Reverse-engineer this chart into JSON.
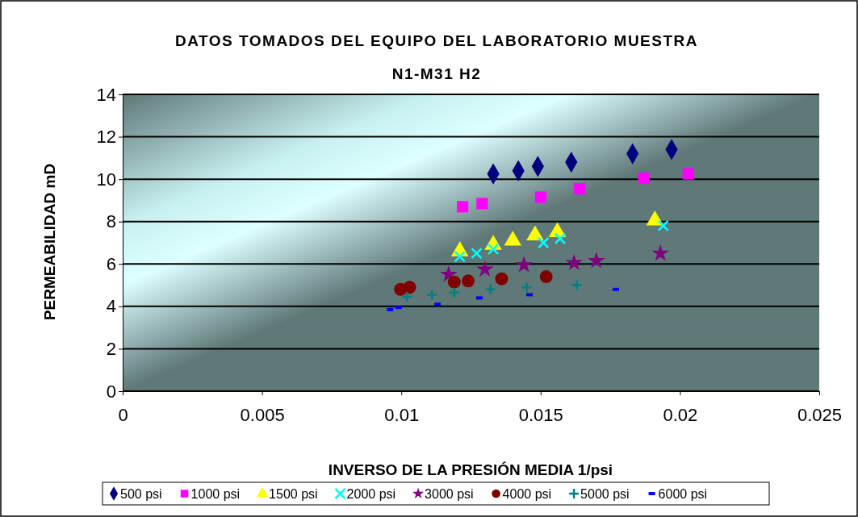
{
  "chart_data": {
    "type": "scatter",
    "title": "DATOS TOMADOS DEL EQUIPO DEL LABORATORIO MUESTRA",
    "subtitle": "N1-M31 H2",
    "xlabel": "INVERSO DE LA PRESIÓN MEDIA 1/psi",
    "ylabel": "PERMEABILIDAD mD",
    "xlim": [
      0,
      0.025
    ],
    "xticks": [
      0,
      0.005,
      0.01,
      0.015,
      0.02,
      0.025
    ],
    "ylim": [
      0,
      14
    ],
    "yticks": [
      0,
      2,
      4,
      6,
      8,
      10,
      12,
      14
    ],
    "grid": "y",
    "legend": "bottom",
    "series": [
      {
        "name": "500 psi",
        "color": "#000080",
        "marker": "diamond",
        "x": [
          0.0133,
          0.0142,
          0.0149,
          0.0161,
          0.0183,
          0.0197
        ],
        "values": [
          10.25,
          10.4,
          10.6,
          10.8,
          11.2,
          11.4
        ]
      },
      {
        "name": "1000 psi",
        "color": "#ff00ff",
        "marker": "square",
        "x": [
          0.0122,
          0.0129,
          0.015,
          0.0164,
          0.0187,
          0.0203
        ],
        "values": [
          8.7,
          8.85,
          9.15,
          9.55,
          10.05,
          10.25
        ]
      },
      {
        "name": "1500 psi",
        "color": "#ffff00",
        "marker": "triangle",
        "x": [
          0.0121,
          0.0133,
          0.014,
          0.0148,
          0.0156,
          0.0191
        ],
        "values": [
          6.6,
          6.9,
          7.1,
          7.35,
          7.5,
          8.05
        ]
      },
      {
        "name": "2000 psi",
        "color": "#00ffff",
        "marker": "cross",
        "x": [
          0.0121,
          0.0127,
          0.0133,
          0.0151,
          0.0157,
          0.0194
        ],
        "values": [
          6.35,
          6.5,
          6.7,
          7.0,
          7.2,
          7.8
        ]
      },
      {
        "name": "3000 psi",
        "color": "#800080",
        "marker": "star",
        "x": [
          0.0117,
          0.013,
          0.0144,
          0.0162,
          0.017,
          0.0193
        ],
        "values": [
          5.5,
          5.75,
          5.95,
          6.05,
          6.15,
          6.5
        ]
      },
      {
        "name": "4000 psi",
        "color": "#800000",
        "marker": "circle",
        "x": [
          0.00997,
          0.0103,
          0.0119,
          0.0124,
          0.0136,
          0.0152
        ],
        "values": [
          4.8,
          4.9,
          5.15,
          5.2,
          5.3,
          5.4
        ]
      },
      {
        "name": "5000 psi",
        "color": "#008080",
        "marker": "plus",
        "x": [
          0.0102,
          0.0111,
          0.0119,
          0.0132,
          0.0145,
          0.0163
        ],
        "values": [
          4.45,
          4.55,
          4.65,
          4.8,
          4.9,
          5.0
        ]
      },
      {
        "name": "6000 psi",
        "color": "#0000ff",
        "x": [
          0.0096,
          0.0099,
          0.0113,
          0.0128,
          0.0146,
          0.0177
        ],
        "values": [
          3.85,
          3.95,
          4.1,
          4.4,
          4.55,
          4.8
        ]
      }
    ]
  }
}
